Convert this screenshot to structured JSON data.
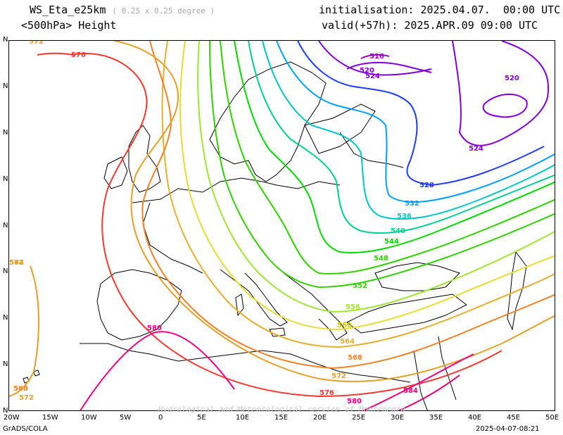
{
  "header": {
    "model": "WS_Eta_e25km",
    "resolution": "( 0.25 x 0.25 degree )",
    "field": "<500hPa> Height",
    "init": "initialisation: 2025.04.07.  00:00 UTC",
    "valid": "valid(+57h): 2025.APR.09 09:00 UTC"
  },
  "axes": {
    "x_ticks": [
      "20W",
      "15W",
      "10W",
      "5W",
      "0",
      "5E",
      "10E",
      "15E",
      "20E",
      "25E",
      "30E",
      "35E",
      "40E",
      "45E",
      "50E"
    ],
    "y_ticks": [
      "N",
      "N",
      "N",
      "N",
      "N",
      "N",
      "N",
      "N",
      "N"
    ]
  },
  "footer": {
    "left": "GrADS/COLA",
    "right": "2025-04-07-08:21",
    "watermark": "Hydrological and Meteorological service of Montenegro"
  },
  "contours": [
    {
      "value": 516,
      "color": "#a000c8"
    },
    {
      "value": 520,
      "color": "#8200dc"
    },
    {
      "value": 524,
      "color": "#8200dc"
    },
    {
      "value": 528,
      "color": "#1e3cff"
    },
    {
      "value": 532,
      "color": "#00a0ff"
    },
    {
      "value": 536,
      "color": "#00c8c8"
    },
    {
      "value": 540,
      "color": "#00d28c"
    },
    {
      "value": 544,
      "color": "#00dc00"
    },
    {
      "value": 548,
      "color": "#32d200"
    },
    {
      "value": 552,
      "color": "#32d200"
    },
    {
      "value": 556,
      "color": "#a0e632"
    },
    {
      "value": 560,
      "color": "#e6dc32"
    },
    {
      "value": 564,
      "color": "#e6af2d"
    },
    {
      "value": 568,
      "color": "#f08228"
    },
    {
      "value": 572,
      "color": "#e6a028"
    },
    {
      "value": 576,
      "color": "#f03c32"
    },
    {
      "value": 580,
      "color": "#f00082"
    },
    {
      "value": 584,
      "color": "#e6007a"
    }
  ],
  "contour_labels": [
    "516",
    "520",
    "524",
    "520",
    "524",
    "528",
    "532",
    "536",
    "540",
    "544",
    "548",
    "552",
    "556",
    "560",
    "564",
    "568",
    "572",
    "572",
    "576",
    "576",
    "580",
    "580",
    "584",
    "572",
    "568",
    "572",
    "564"
  ]
}
